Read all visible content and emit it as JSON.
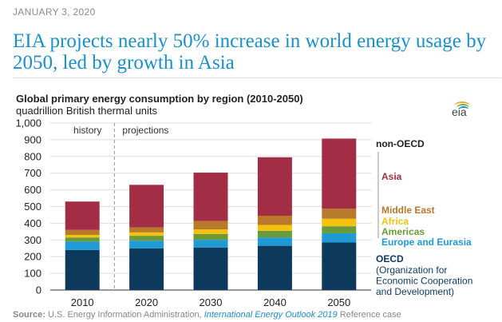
{
  "header": {
    "date": "JANUARY 3, 2020",
    "headline": "EIA projects nearly 50% increase in world energy usage by 2050, led by growth in Asia"
  },
  "logo": {
    "text": "eia"
  },
  "chart_data": {
    "type": "bar",
    "stacked": true,
    "title": "Global primary energy consumption by region (2010-2050)",
    "subtitle": "quadrillion British thermal units",
    "categories": [
      "2010",
      "2020",
      "2030",
      "2040",
      "2050"
    ],
    "ylim": [
      0,
      1000
    ],
    "yticks": [
      "0",
      "100",
      "200",
      "300",
      "400",
      "500",
      "600",
      "700",
      "800",
      "900",
      "1,000"
    ],
    "ytick_values": [
      0,
      100,
      200,
      300,
      400,
      500,
      600,
      700,
      800,
      900,
      1000
    ],
    "grid": true,
    "divider_after_category": "2010",
    "period_labels": [
      "history",
      "projections"
    ],
    "series": [
      {
        "name": "OECD",
        "color": "#0d3a5c",
        "values": [
          240,
          250,
          255,
          265,
          285
        ]
      },
      {
        "name": "Europe and Eurasia",
        "color": "#1e9ad6",
        "values": [
          50,
          45,
          45,
          50,
          55
        ]
      },
      {
        "name": "Americas",
        "color": "#6a9a3a",
        "values": [
          25,
          30,
          35,
          40,
          42
        ]
      },
      {
        "name": "Africa",
        "color": "#f4c20d",
        "values": [
          15,
          20,
          28,
          35,
          45
        ]
      },
      {
        "name": "Middle East",
        "color": "#b8792a",
        "values": [
          30,
          30,
          50,
          55,
          60
        ]
      },
      {
        "name": "Asia",
        "color": "#a32d44",
        "values": [
          170,
          255,
          290,
          350,
          420
        ]
      }
    ],
    "legend": {
      "non_oecd_label": "non-OECD",
      "entries": [
        {
          "label": "Asia",
          "color": "#a32d44"
        },
        {
          "label": "Middle East",
          "color": "#b8792a"
        },
        {
          "label": "Africa",
          "color": "#f4c20d"
        },
        {
          "label": "Americas",
          "color": "#6a9a3a"
        },
        {
          "label": "Europe and Eurasia",
          "color": "#1e9ad6"
        }
      ],
      "oecd_label": "OECD",
      "oecd_desc_lines": [
        "(Organization for",
        "Economic Cooperation",
        "and Development)"
      ]
    }
  },
  "source": {
    "label": "Source:",
    "text": "U.S. Energy Information Administration,",
    "link": "International Energy Outlook 2019",
    "suffix": "Reference case"
  }
}
